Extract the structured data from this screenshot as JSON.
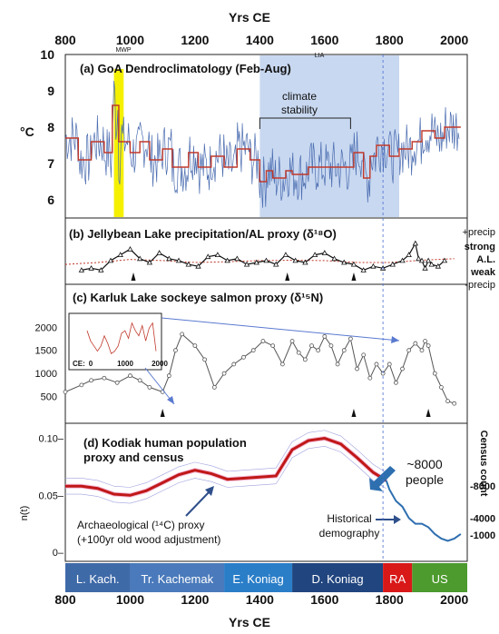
{
  "figure": {
    "top_axis_label": "Yrs CE",
    "bottom_axis_label": "Yrs CE",
    "x_ticks": [
      "800",
      "1000",
      "1200",
      "1400",
      "1600",
      "1800",
      "2000"
    ]
  },
  "chart_data": [
    {
      "type": "line",
      "panel": "a",
      "title": "(a) GoA Dendroclimatology (Feb-Aug)",
      "ylabel": "°C",
      "y_ticks": [
        "6",
        "7",
        "8",
        "9",
        "10"
      ],
      "ylim": [
        5.5,
        10
      ],
      "xlim": [
        800,
        2040
      ],
      "colors": {
        "raw": "#4a6cb0",
        "smoothed": "#c0392b",
        "mwp": "#f5f000",
        "lia": "#c8d8f0"
      },
      "annotations": {
        "mwp": "MWP",
        "lia": "LIA",
        "stability": "climate",
        "stability2": "stability"
      },
      "mwp_range": [
        950,
        980
      ],
      "lia_range": [
        1400,
        1830
      ],
      "stability_range": [
        1400,
        1680
      ],
      "smoothed_steps": [
        {
          "x": 800,
          "y": 7.7
        },
        {
          "x": 840,
          "y": 7.1
        },
        {
          "x": 880,
          "y": 7.6
        },
        {
          "x": 920,
          "y": 7.3
        },
        {
          "x": 945,
          "y": 8.6
        },
        {
          "x": 965,
          "y": 7.6
        },
        {
          "x": 1000,
          "y": 7.3
        },
        {
          "x": 1030,
          "y": 7.6
        },
        {
          "x": 1060,
          "y": 7.1
        },
        {
          "x": 1100,
          "y": 7.4
        },
        {
          "x": 1130,
          "y": 6.9
        },
        {
          "x": 1180,
          "y": 7.3
        },
        {
          "x": 1210,
          "y": 6.9
        },
        {
          "x": 1250,
          "y": 7.2
        },
        {
          "x": 1290,
          "y": 6.9
        },
        {
          "x": 1330,
          "y": 7.4
        },
        {
          "x": 1370,
          "y": 7.1
        },
        {
          "x": 1400,
          "y": 6.5
        },
        {
          "x": 1420,
          "y": 6.8
        },
        {
          "x": 1440,
          "y": 6.6
        },
        {
          "x": 1480,
          "y": 6.8
        },
        {
          "x": 1500,
          "y": 6.7
        },
        {
          "x": 1550,
          "y": 6.9
        },
        {
          "x": 1640,
          "y": 6.9
        },
        {
          "x": 1690,
          "y": 7.3
        },
        {
          "x": 1720,
          "y": 6.6
        },
        {
          "x": 1740,
          "y": 7.2
        },
        {
          "x": 1760,
          "y": 7.5
        },
        {
          "x": 1800,
          "y": 7.2
        },
        {
          "x": 1830,
          "y": 7.4
        },
        {
          "x": 1870,
          "y": 7.6
        },
        {
          "x": 1900,
          "y": 7.9
        },
        {
          "x": 1940,
          "y": 7.7
        },
        {
          "x": 1970,
          "y": 8.0
        },
        {
          "x": 2010,
          "y": 8.0
        }
      ]
    },
    {
      "type": "line",
      "panel": "b",
      "title": "(b) Jellybean Lake precipitation/AL proxy (δ¹⁸O)",
      "right_labels": [
        "+precip",
        "strong",
        "A.L.",
        "weak",
        "-precip"
      ],
      "ylim": [
        0,
        1
      ],
      "xlim": [
        800,
        2040
      ],
      "x": [
        850,
        880,
        910,
        940,
        970,
        1000,
        1030,
        1060,
        1090,
        1120,
        1150,
        1180,
        1210,
        1240,
        1270,
        1300,
        1330,
        1360,
        1390,
        1420,
        1450,
        1480,
        1510,
        1540,
        1570,
        1600,
        1630,
        1660,
        1690,
        1720,
        1750,
        1780,
        1810,
        1840,
        1860,
        1880,
        1890,
        1900,
        1910,
        1920,
        1930,
        1950,
        1970
      ],
      "y": [
        0.3,
        0.35,
        0.3,
        0.55,
        0.7,
        0.85,
        0.6,
        0.5,
        0.75,
        0.6,
        0.55,
        0.45,
        0.4,
        0.65,
        0.7,
        0.55,
        0.6,
        0.45,
        0.5,
        0.55,
        0.45,
        0.7,
        0.55,
        0.5,
        0.7,
        0.75,
        0.6,
        0.5,
        0.45,
        0.3,
        0.4,
        0.35,
        0.45,
        0.55,
        0.7,
        1.0,
        0.6,
        0.55,
        0.35,
        0.55,
        0.45,
        0.4,
        0.55
      ],
      "trend_x": [
        800,
        900,
        1000,
        1100,
        1200,
        1300,
        1400,
        1500,
        1600,
        1700,
        1800,
        1900,
        2000
      ],
      "trend_y": [
        0.45,
        0.5,
        0.58,
        0.55,
        0.5,
        0.52,
        0.55,
        0.56,
        0.55,
        0.5,
        0.5,
        0.56,
        0.6
      ],
      "markers_x": [
        1010,
        1485,
        1690
      ]
    },
    {
      "type": "line",
      "panel": "c",
      "title": "(c) Karluk Lake sockeye salmon proxy (δ¹⁵N)",
      "y_ticks": [
        "500",
        "1000",
        "1500",
        "2000"
      ],
      "ylim": [
        0,
        2300
      ],
      "xlim": [
        800,
        2040
      ],
      "x": [
        800,
        850,
        880,
        920,
        960,
        1000,
        1030,
        1060,
        1100,
        1120,
        1140,
        1160,
        1200,
        1230,
        1260,
        1290,
        1320,
        1350,
        1380,
        1410,
        1440,
        1470,
        1500,
        1520,
        1540,
        1560,
        1580,
        1600,
        1620,
        1640,
        1660,
        1680,
        1700,
        1720,
        1740,
        1760,
        1780,
        1800,
        1820,
        1840,
        1860,
        1880,
        1900,
        1910,
        1920,
        1940,
        1960,
        1980,
        2000
      ],
      "y": [
        600,
        750,
        850,
        900,
        800,
        950,
        850,
        700,
        600,
        950,
        1500,
        1850,
        1600,
        1300,
        700,
        1000,
        1200,
        1350,
        1500,
        1700,
        1600,
        1200,
        1700,
        1450,
        1300,
        1600,
        1500,
        1800,
        1600,
        1200,
        1500,
        1750,
        1100,
        1400,
        900,
        1200,
        1000,
        1200,
        800,
        1100,
        1500,
        1650,
        1500,
        1700,
        1600,
        1000,
        700,
        400,
        350
      ],
      "inset": {
        "x_ticks": [
          "0",
          "1000",
          "2000"
        ],
        "x_prefix": "CE:",
        "x": [
          0,
          100,
          200,
          300,
          400,
          500,
          600,
          700,
          800,
          900,
          1000,
          1100,
          1200,
          1300,
          1400,
          1500,
          1600,
          1700,
          1800,
          1900,
          2000
        ],
        "y": [
          1500,
          1100,
          900,
          700,
          900,
          1300,
          1000,
          600,
          700,
          900,
          1400,
          1500,
          1200,
          1800,
          1500,
          1300,
          1700,
          1100,
          1600,
          1800,
          700
        ]
      },
      "markers_x": [
        1100,
        1690,
        1920
      ]
    },
    {
      "type": "line",
      "panel": "d",
      "title": "(d) Kodiak human population",
      "title2": "proxy and census",
      "ylabel": "n(t)",
      "y_ticks": [
        "0–",
        "0.05–",
        "0.10–"
      ],
      "right_ylabel": "Census count",
      "right_ticks": [
        "-1000",
        "-4000",
        "-8000"
      ],
      "ylim": [
        0,
        0.11
      ],
      "xlim": [
        800,
        2040
      ],
      "colors": {
        "proxy": "#c01818",
        "band": "#f0a0c8",
        "census": "#2e6fb0"
      },
      "proxy_x": [
        800,
        850,
        900,
        950,
        1000,
        1050,
        1100,
        1150,
        1200,
        1250,
        1300,
        1350,
        1400,
        1450,
        1500,
        1550,
        1600,
        1650,
        1700,
        1750,
        1790
      ],
      "proxy_y": [
        0.058,
        0.058,
        0.056,
        0.051,
        0.05,
        0.054,
        0.061,
        0.068,
        0.072,
        0.069,
        0.064,
        0.065,
        0.066,
        0.067,
        0.09,
        0.098,
        0.1,
        0.095,
        0.083,
        0.07,
        0.063
      ],
      "census_x": [
        1790,
        1800,
        1820,
        1840,
        1860,
        1880,
        1900,
        1920,
        1940,
        1960,
        1980,
        2000,
        2020
      ],
      "census_y": [
        0.063,
        0.055,
        0.045,
        0.04,
        0.03,
        0.025,
        0.025,
        0.022,
        0.016,
        0.012,
        0.01,
        0.012,
        0.016
      ],
      "annotations": {
        "people1": "~8000",
        "people2": "people",
        "hist1": "Historical",
        "hist2": "demography",
        "arch1": "Archaeological (¹⁴C) proxy",
        "arch2": "(+100yr old wood adjustment)"
      }
    }
  ],
  "periods": [
    {
      "label": "L. Kach.",
      "start": 800,
      "end": 1000,
      "color": "#3f6aa8"
    },
    {
      "label": "Tr. Kachemak",
      "start": 1000,
      "end": 1290,
      "color": "#4a7abb"
    },
    {
      "label": "E. Koniag",
      "start": 1290,
      "end": 1500,
      "color": "#2a7ec8"
    },
    {
      "label": "D. Koniag",
      "start": 1500,
      "end": 1780,
      "color": "#21457f"
    },
    {
      "label": "RA",
      "start": 1780,
      "end": 1870,
      "color": "#d91818"
    },
    {
      "label": "US",
      "start": 1870,
      "end": 2040,
      "color": "#4d9a2e"
    }
  ]
}
